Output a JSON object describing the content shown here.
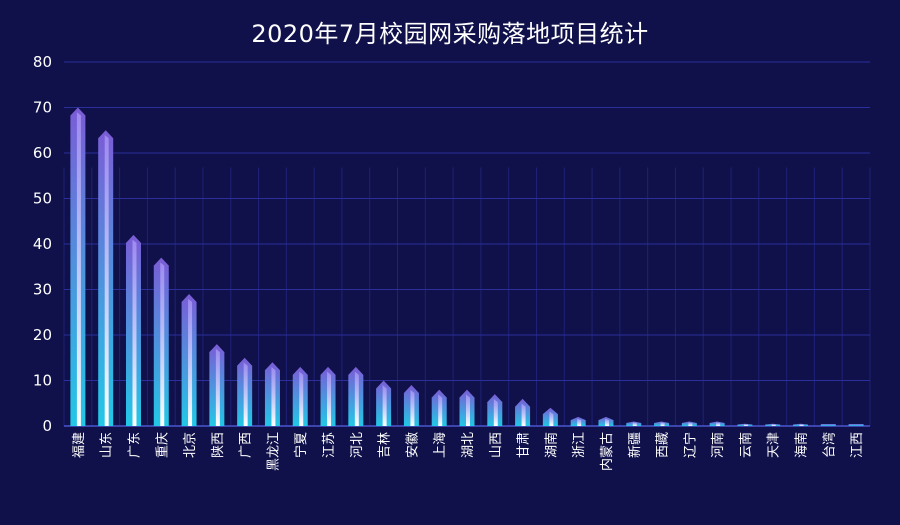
{
  "chart_data": {
    "type": "bar",
    "title": "2020年7月校园网采购落地项目统计",
    "xlabel": "",
    "ylabel": "",
    "ylim": [
      0,
      80
    ],
    "yticks": [
      0,
      10,
      20,
      30,
      40,
      50,
      60,
      70,
      80
    ],
    "grid": true,
    "categories": [
      "福建",
      "山东",
      "广东",
      "重庆",
      "北京",
      "陕西",
      "广西",
      "黑龙江",
      "宁夏",
      "江苏",
      "河北",
      "吉林",
      "安徽",
      "上海",
      "湖北",
      "山西",
      "甘肃",
      "湖南",
      "浙江",
      "内蒙古",
      "新疆",
      "西藏",
      "辽宁",
      "河南",
      "云南",
      "天津",
      "海南",
      "台湾",
      "江西"
    ],
    "values": [
      70,
      65,
      42,
      37,
      29,
      18,
      15,
      14,
      13,
      13,
      13,
      10,
      9,
      8,
      8,
      7,
      6,
      4,
      2,
      2,
      1,
      1,
      1,
      1,
      0.5,
      0.5,
      0.5,
      0,
      0
    ],
    "colors": {
      "background": "#10114a",
      "bar_top": "#7b5cd6",
      "bar_bottom": "#22c8e6",
      "bar_highlight": "#ffffff",
      "grid": "#2a2f9a",
      "axis": "#4a55d0"
    }
  }
}
